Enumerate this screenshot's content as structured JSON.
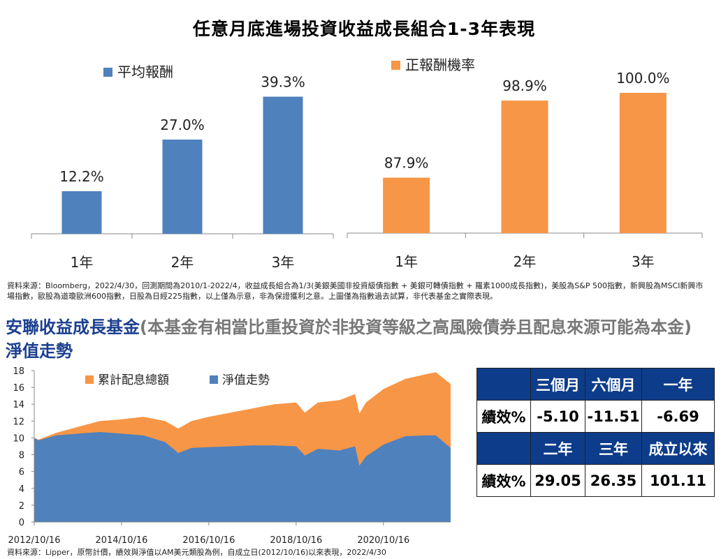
{
  "title": "任意月底進場投資收益成長組合1-3年表現",
  "chart_data": [
    {
      "type": "bar",
      "title": "平均報酬",
      "legend": "平均報酬",
      "categories": [
        "1年",
        "2年",
        "3年"
      ],
      "values": [
        12.2,
        27.0,
        39.3
      ],
      "labels": [
        "12.2%",
        "27.0%",
        "39.3%"
      ],
      "ylim": [
        0,
        40
      ],
      "color": "#4f81bd"
    },
    {
      "type": "bar",
      "title": "正報酬機率",
      "legend": "正報酬機率",
      "categories": [
        "1年",
        "2年",
        "3年"
      ],
      "values": [
        87.9,
        98.9,
        100.0
      ],
      "labels": [
        "87.9%",
        "98.9%",
        "100.0%"
      ],
      "ylim": [
        80,
        101
      ],
      "color": "#f79646"
    },
    {
      "type": "area",
      "stacked": true,
      "legend_position": "top",
      "x_unit": "years since 2012/10/16",
      "x": [
        0,
        0.1,
        0.5,
        1.0,
        1.5,
        2.0,
        2.5,
        3.0,
        3.3,
        3.6,
        4.0,
        5.0,
        5.5,
        6.0,
        6.2,
        6.5,
        7.0,
        7.35,
        7.45,
        7.6,
        8.0,
        8.5,
        9.0,
        9.2,
        9.54
      ],
      "series": [
        {
          "name": "淨值走勢",
          "color": "#4f81bd",
          "values": [
            10.0,
            9.7,
            10.3,
            10.5,
            10.7,
            10.5,
            10.3,
            9.5,
            8.2,
            8.8,
            8.9,
            9.1,
            9.1,
            9.0,
            7.9,
            8.7,
            8.5,
            9.0,
            6.7,
            7.8,
            9.2,
            10.2,
            10.3,
            10.3,
            8.8
          ]
        },
        {
          "name": "累計配息總額",
          "color": "#f79646",
          "values": [
            0.0,
            0.1,
            0.3,
            0.8,
            1.3,
            1.7,
            2.2,
            2.5,
            2.9,
            3.2,
            3.6,
            4.4,
            4.9,
            5.2,
            5.1,
            5.5,
            6.0,
            6.2,
            6.2,
            6.4,
            6.6,
            6.8,
            7.3,
            7.5,
            7.6
          ]
        }
      ],
      "xticks": [
        "2012/10/16",
        "2014/10/16",
        "2016/10/16",
        "2018/10/16",
        "2020/10/16"
      ],
      "yticks": [
        "0",
        "2",
        "4",
        "6",
        "8",
        "10",
        "12",
        "14",
        "16",
        "18"
      ],
      "ylim": [
        0,
        18
      ],
      "xlim": [
        0,
        9.54
      ]
    }
  ],
  "note1": "資料來源：Bloomberg，2022/4/30，回測期間為2010/1-2022/4，收益成長組合為1/3(美銀美國非投資級債指數 + 美銀可轉債指數 + 羅素1000成長指數)，美股為S&P 500指數，新興股為MSCI新興市場指數，歐股為道瓊歐洲600指數，日股為日經225指數，以上僅為示意，非為保證獲利之意。上圖僅為指數過去試算，非代表基金之實際表現。",
  "fund_title_blue": "安聯收益成長基金",
  "fund_title_gray": "(本基金有相當比重投資於非投資等級之高風險債券且配息來源可能為本金)",
  "fund_title_blue2": "淨值走勢",
  "note2": "資料來源：Lipper，原幣計價，績效與淨值以AM美元類股為例，自成立日(2012/10/16)以來表現，2022/4/30",
  "table": {
    "header1": [
      "",
      "三個月",
      "六個月",
      "一年"
    ],
    "row1": [
      "績效%",
      "-5.10",
      "-11.51",
      "-6.69"
    ],
    "header2": [
      "",
      "二年",
      "三年",
      "成立以來"
    ],
    "row2": [
      "績效%",
      "29.05",
      "26.35",
      "101.11"
    ]
  }
}
